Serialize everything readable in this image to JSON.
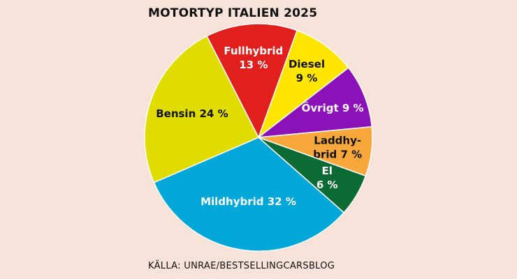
{
  "chart_data": {
    "type": "pie",
    "title": "MOTORTYP ITALIEN 2025",
    "categories": [
      "Fullhybrid",
      "Diesel",
      "Övrigt",
      "Laddhybrid",
      "El",
      "Mildhybrid",
      "Bensin"
    ],
    "values": [
      13,
      9,
      9,
      7,
      6,
      32,
      24
    ],
    "unit": "%",
    "colors": [
      "#e11f1c",
      "#ffe500",
      "#8b12b8",
      "#f8a73a",
      "#0c6a35",
      "#00a7d8",
      "#e0dc00"
    ],
    "labels": [
      [
        "Fullhybrid",
        "13 %"
      ],
      [
        "Diesel",
        "9 %"
      ],
      [
        "Övrigt 9 %"
      ],
      [
        "Laddhy-",
        "brid 7 %"
      ],
      [
        "El",
        "6 %"
      ],
      [
        "Mildhybrid 32 %"
      ],
      [
        "Bensin 24 %"
      ]
    ],
    "label_colors": [
      "#ffffff",
      "#111111",
      "#ffffff",
      "#111111",
      "#ffffff",
      "#ffffff",
      "#111111"
    ],
    "source": "KÄLLA: UNRAE/BESTSELLINGCARSBLOG"
  }
}
